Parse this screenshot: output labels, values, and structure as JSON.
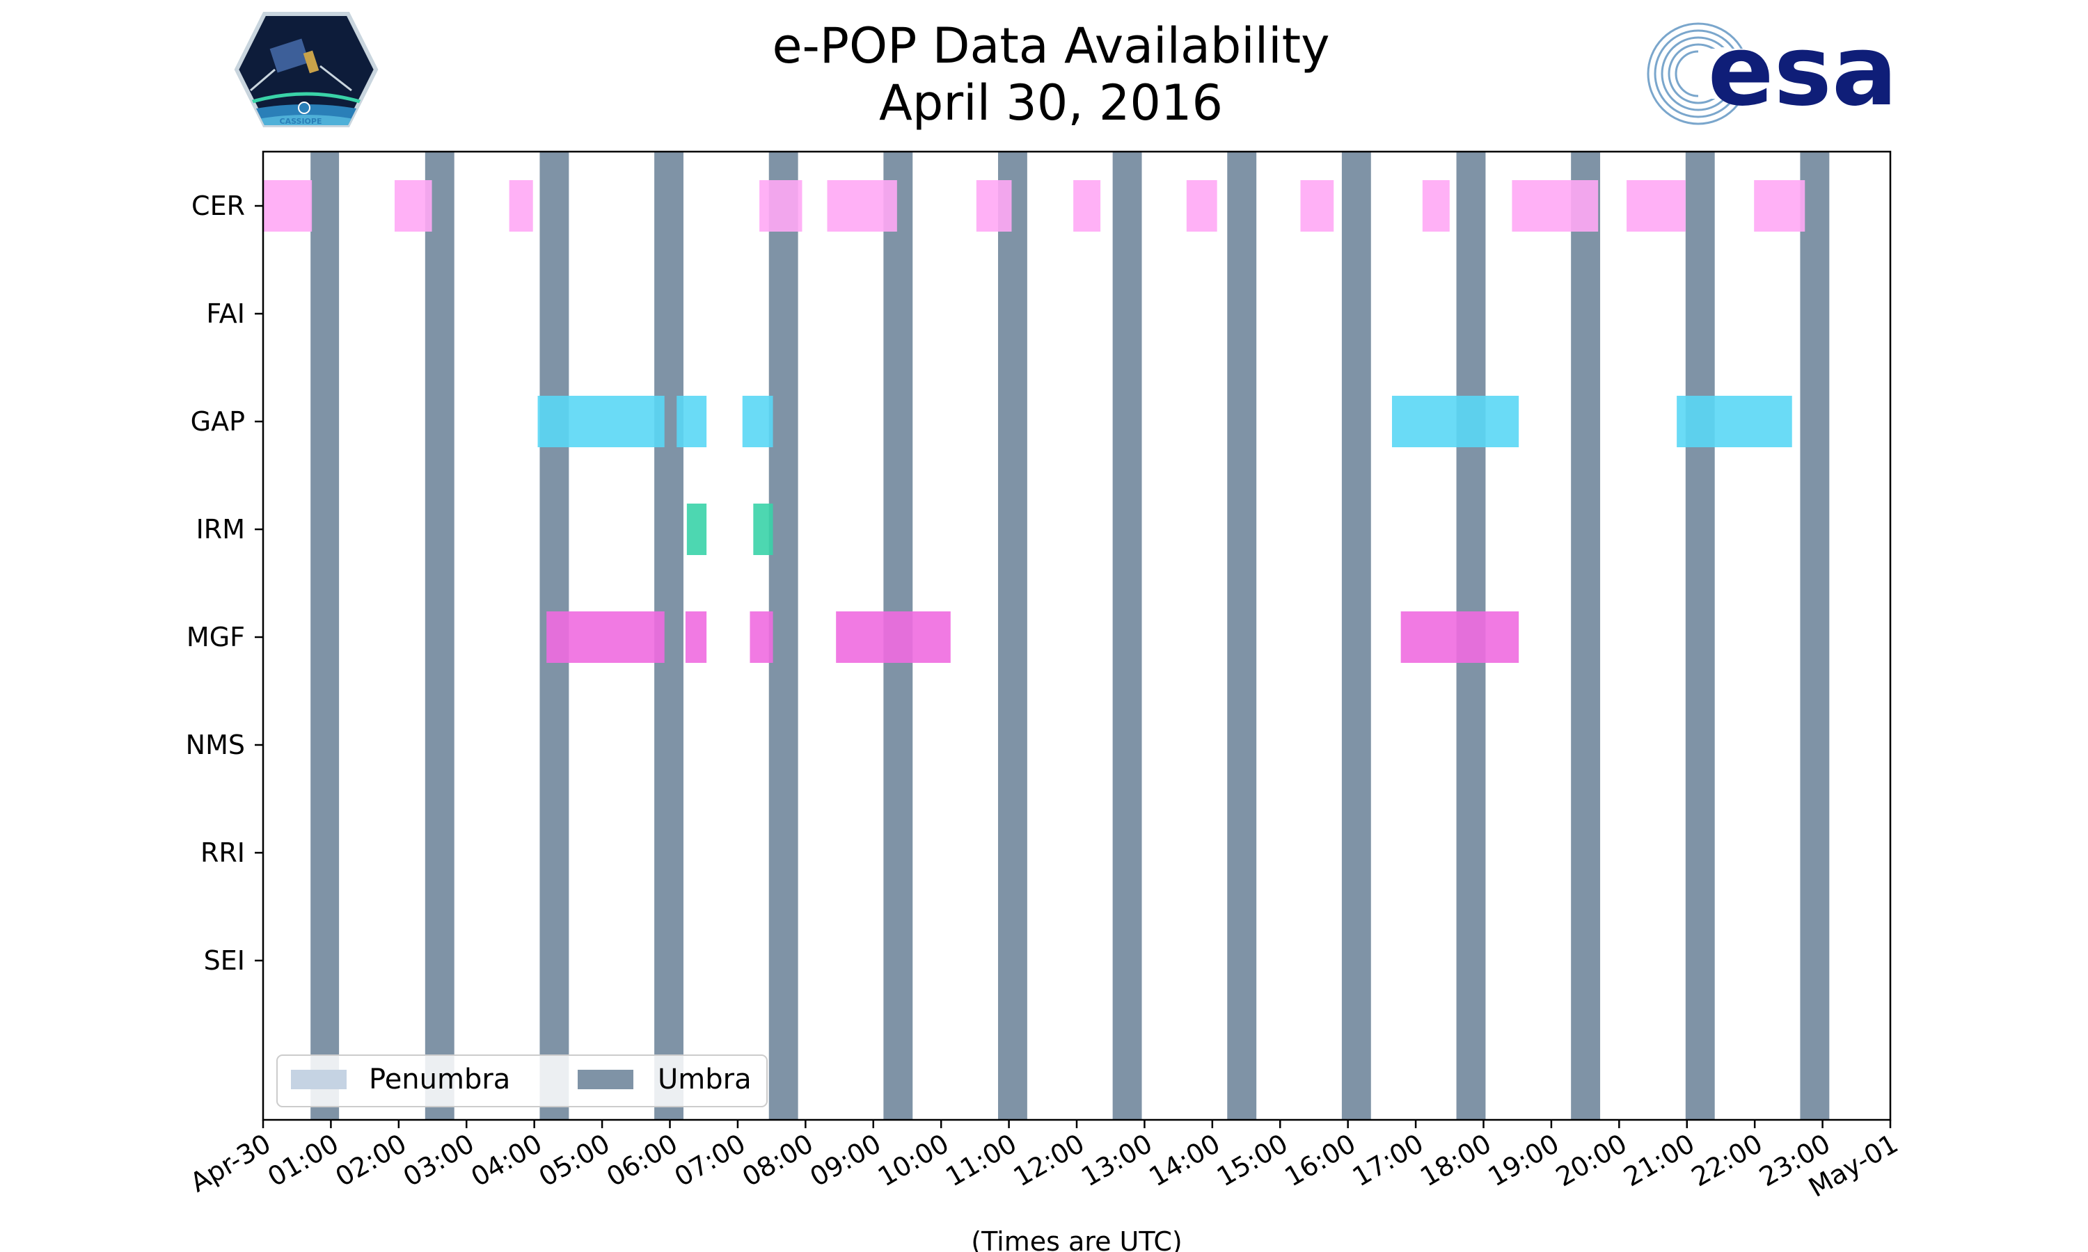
{
  "chart_data": {
    "type": "timeline",
    "title": [
      "e-POP Data Availability",
      "April 30, 2016"
    ],
    "xlabel": "(Times are UTC)",
    "x_unit": "hours since 2016-04-30 00:00 UTC",
    "xlim": [
      0,
      24
    ],
    "x_tick_labels": [
      "Apr-30",
      "01:00",
      "02:00",
      "03:00",
      "04:00",
      "05:00",
      "06:00",
      "07:00",
      "08:00",
      "09:00",
      "10:00",
      "11:00",
      "12:00",
      "13:00",
      "14:00",
      "15:00",
      "16:00",
      "17:00",
      "18:00",
      "19:00",
      "20:00",
      "21:00",
      "22:00",
      "23:00",
      "May-01"
    ],
    "instruments": [
      "CER",
      "FAI",
      "GAP",
      "IRM",
      "MGF",
      "NMS",
      "RRI",
      "SEI"
    ],
    "colors": {
      "umbra": "#7f93a6",
      "penumbra": "#c5d3e3",
      "CER": "#ffa8f5",
      "GAP": "#5ad7f5",
      "IRM": "#3ad3a8",
      "MGF": "#f06ce0"
    },
    "umbra": [
      [
        0.7,
        1.12
      ],
      [
        2.39,
        2.82
      ],
      [
        4.08,
        4.51
      ],
      [
        5.77,
        6.2
      ],
      [
        7.46,
        7.89
      ],
      [
        9.15,
        9.58
      ],
      [
        10.84,
        11.27
      ],
      [
        12.53,
        12.96
      ],
      [
        14.22,
        14.65
      ],
      [
        15.91,
        16.34
      ],
      [
        17.6,
        18.03
      ],
      [
        19.29,
        19.72
      ],
      [
        20.98,
        21.41
      ],
      [
        22.67,
        23.1
      ]
    ],
    "availability": {
      "CER": [
        [
          0.0,
          0.72
        ],
        [
          1.94,
          2.49
        ],
        [
          3.63,
          3.98
        ],
        [
          7.32,
          7.95
        ],
        [
          8.32,
          9.35
        ],
        [
          10.52,
          11.04
        ],
        [
          11.95,
          12.35
        ],
        [
          13.62,
          14.07
        ],
        [
          15.3,
          15.79
        ],
        [
          17.1,
          17.5
        ],
        [
          18.42,
          19.69
        ],
        [
          20.11,
          20.98
        ],
        [
          21.99,
          22.74
        ]
      ],
      "FAI": [],
      "GAP": [
        [
          4.05,
          5.92
        ],
        [
          6.1,
          6.54
        ],
        [
          7.07,
          7.52
        ]
      ],
      "GAP_extra": [
        [
          16.65,
          18.52
        ],
        [
          20.85,
          22.55
        ]
      ],
      "IRM": [
        [
          6.25,
          6.54
        ],
        [
          7.23,
          7.52
        ]
      ],
      "MGF": [
        [
          4.18,
          5.92
        ],
        [
          6.23,
          6.54
        ],
        [
          7.18,
          7.52
        ],
        [
          8.45,
          10.14
        ],
        [
          16.78,
          18.52
        ]
      ],
      "NMS": [],
      "RRI": [],
      "SEI": []
    },
    "legend": {
      "placement": "lower-left",
      "entries": [
        "Penumbra",
        "Umbra"
      ]
    }
  },
  "logos": {
    "left": {
      "name": "CASSIOPE mission patch",
      "text": "CASSIOPE"
    },
    "right": {
      "name": "ESA logo",
      "text": "esa"
    }
  }
}
